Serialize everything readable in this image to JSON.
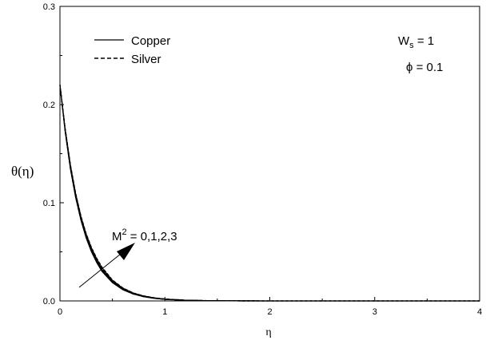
{
  "chart_data": {
    "type": "line",
    "xlabel": "η",
    "ylabel": "θ(η)",
    "xlim": [
      0,
      4
    ],
    "ylim": [
      0,
      0.3
    ],
    "x_ticks": [
      "0",
      "1",
      "2",
      "3",
      "4"
    ],
    "y_ticks": [
      "0.0",
      "0.1",
      "0.2",
      "0.3"
    ],
    "grid": false,
    "legend_position": "top-left",
    "legend": [
      {
        "label": "Copper",
        "style": "solid"
      },
      {
        "label": "Silver",
        "style": "dashed"
      }
    ],
    "params": {
      "ws_main": "W",
      "ws_sub": "s",
      "ws_rest": " = 1",
      "phi": "ϕ = 0.1"
    },
    "annotation": {
      "m_main": "M",
      "m_sup": "2",
      "m_rest": " = 0,1,2,3"
    },
    "x": [
      0,
      0.05,
      0.1,
      0.15,
      0.2,
      0.25,
      0.3,
      0.35,
      0.4,
      0.5,
      0.6,
      0.7,
      0.8,
      0.9,
      1.0,
      1.2,
      1.4,
      1.6,
      2.0,
      2.5,
      3.0,
      3.5,
      4.0
    ],
    "series": [
      {
        "name": "Copper",
        "style": "solid",
        "values": [
          0.22,
          0.172,
          0.134,
          0.105,
          0.082,
          0.064,
          0.05,
          0.039,
          0.03,
          0.0185,
          0.0113,
          0.0069,
          0.0042,
          0.0026,
          0.0016,
          0.0006,
          0.0002,
          0.0001,
          0,
          0,
          0,
          0,
          0
        ]
      },
      {
        "name": "Copper",
        "style": "solid",
        "values": [
          0.22,
          0.173,
          0.135,
          0.106,
          0.083,
          0.065,
          0.051,
          0.04,
          0.031,
          0.0192,
          0.0118,
          0.0072,
          0.0044,
          0.0027,
          0.0017,
          0.0006,
          0.0002,
          0.0001,
          0,
          0,
          0,
          0,
          0
        ]
      },
      {
        "name": "Copper",
        "style": "solid",
        "values": [
          0.22,
          0.174,
          0.137,
          0.108,
          0.085,
          0.067,
          0.053,
          0.041,
          0.032,
          0.02,
          0.0124,
          0.0076,
          0.0047,
          0.0029,
          0.0018,
          0.0007,
          0.0003,
          0.0001,
          0,
          0,
          0,
          0,
          0
        ]
      },
      {
        "name": "Copper",
        "style": "solid",
        "values": [
          0.22,
          0.175,
          0.138,
          0.109,
          0.086,
          0.068,
          0.054,
          0.043,
          0.034,
          0.021,
          0.013,
          0.008,
          0.005,
          0.0031,
          0.0019,
          0.0007,
          0.0003,
          0.0001,
          0,
          0,
          0,
          0,
          0
        ]
      },
      {
        "name": "Silver",
        "style": "dashed",
        "values": [
          0.22,
          0.1725,
          0.1345,
          0.1055,
          0.0825,
          0.0645,
          0.0505,
          0.0395,
          0.0305,
          0.0188,
          0.0115,
          0.007,
          0.0043,
          0.0026,
          0.0016,
          0.0006,
          0.0002,
          0.0001,
          0,
          0,
          0,
          0,
          0
        ]
      },
      {
        "name": "Silver",
        "style": "dashed",
        "values": [
          0.22,
          0.1735,
          0.1355,
          0.1065,
          0.0835,
          0.0655,
          0.0515,
          0.0405,
          0.0315,
          0.0195,
          0.012,
          0.0073,
          0.0045,
          0.0028,
          0.0017,
          0.0006,
          0.0002,
          0.0001,
          0,
          0,
          0,
          0,
          0
        ]
      },
      {
        "name": "Silver",
        "style": "dashed",
        "values": [
          0.22,
          0.1745,
          0.1375,
          0.1085,
          0.0855,
          0.0675,
          0.0535,
          0.0415,
          0.0325,
          0.0203,
          0.0126,
          0.0077,
          0.0048,
          0.003,
          0.0018,
          0.0007,
          0.0003,
          0.0001,
          0,
          0,
          0,
          0,
          0
        ]
      },
      {
        "name": "Silver",
        "style": "dashed",
        "values": [
          0.22,
          0.1755,
          0.1385,
          0.1095,
          0.0865,
          0.0685,
          0.0545,
          0.0435,
          0.0345,
          0.0213,
          0.0132,
          0.0081,
          0.0051,
          0.0032,
          0.002,
          0.0008,
          0.0003,
          0.0001,
          0,
          0,
          0,
          0,
          0
        ]
      }
    ]
  }
}
